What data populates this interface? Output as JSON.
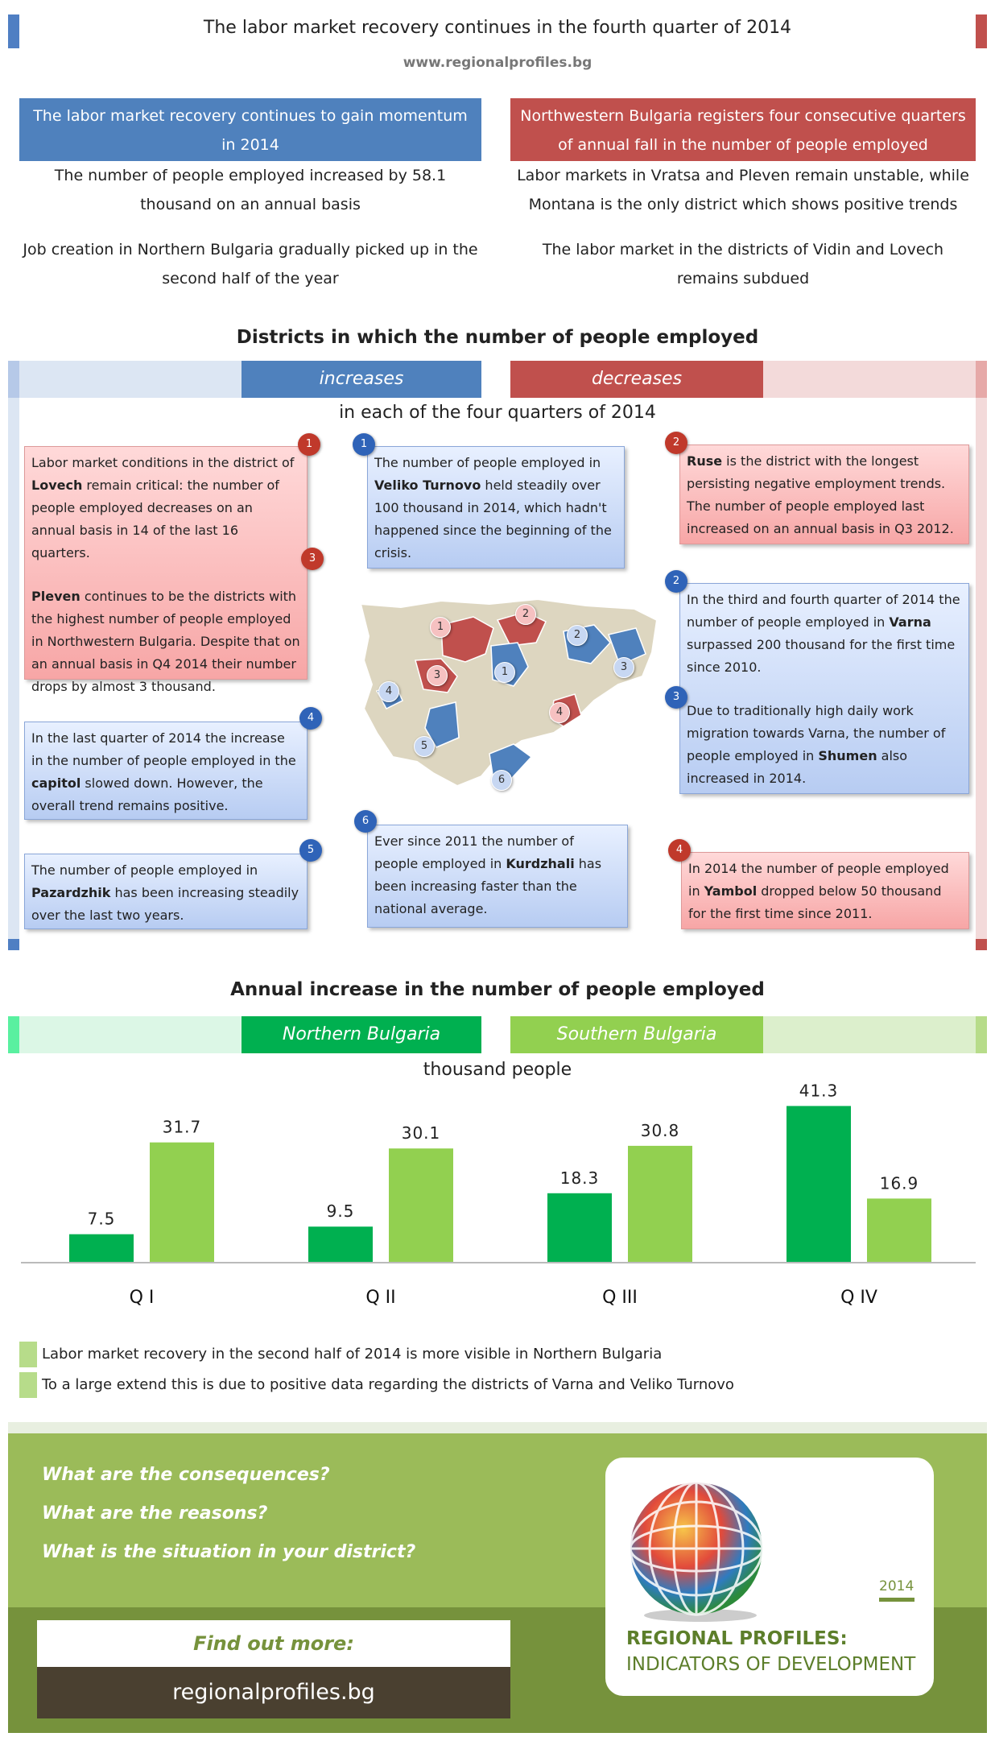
{
  "header": {
    "title": "The labor market recovery continues in the fourth quarter of 2014",
    "url": "www.regionalprofiles.bg"
  },
  "summary": {
    "left_banner": "The labor market recovery continues to gain momentum in 2014",
    "left_points": [
      "The number of people employed increased by 58.1 thousand on an annual basis",
      "Job creation in Northern Bulgaria gradually picked up in the second half of the year"
    ],
    "right_banner": "Northwestern Bulgaria registers four consecutive quarters of annual fall in the number of people employed",
    "right_points": [
      "Labor markets in Vratsa and Pleven remain unstable, while Montana is the only district which shows positive trends",
      "The labor market in the districts of Vidin and Lovech remains subdued"
    ]
  },
  "districts": {
    "title": "Districts in which the number of people employed",
    "increases_label": "increases",
    "decreases_label": "decreases",
    "subtitle": "in each of the four quarters of 2014",
    "cards": [
      {
        "num": "1",
        "color": "red",
        "pre": "Labor market conditions in the district of ",
        "bold": "Lovech",
        "post": " remain critical: the number of people employed decreases on an annual basis in 14 of the last 16 quarters."
      },
      {
        "num": "3",
        "color": "red",
        "pre": "",
        "bold": "Pleven",
        "post": " continues to be the districts with the highest number of people employed in Northwestern Bulgaria. Despite that on an annual basis in Q4 2014 their number drops by almost 3 thousand."
      },
      {
        "num": "1",
        "color": "blue",
        "pre": "The number of people employed in ",
        "bold": "Veliko Turnovo",
        "post": " held steadily over 100 thousand in 2014, which hadn't happened since the beginning of the crisis."
      },
      {
        "num": "2",
        "color": "red",
        "pre": "",
        "bold": "Ruse",
        "post": " is the district with the longest persisting negative employment trends. The number of people employed last increased on an annual basis in Q3 2012."
      },
      {
        "num": "2",
        "color": "blue",
        "pre": "In the third and fourth quarter of 2014 the number of people employed in ",
        "bold": "Varna",
        "post": " surpassed 200 thousand for the first time since 2010."
      },
      {
        "num": "3",
        "color": "blue",
        "pre": "Due to traditionally high daily work migration towards Varna, the number of people employed in ",
        "bold": "Shumen",
        "post": " also increased in 2014."
      },
      {
        "num": "4",
        "color": "blue",
        "pre": "In the last quarter of 2014 the increase in the number of people employed in the ",
        "bold": "capitol",
        "post": " slowed down. However, the overall trend remains positive."
      },
      {
        "num": "5",
        "color": "blue",
        "pre": "The number of people employed in ",
        "bold": "Pazardzhik",
        "post": " has been increasing steadily over the last two years."
      },
      {
        "num": "6",
        "color": "blue",
        "pre": "Ever since 2011 the number of people employed in ",
        "bold": "Kurdzhali",
        "post": " has been increasing faster than the national average."
      },
      {
        "num": "4",
        "color": "red",
        "pre": "In 2014 the number of people employed in ",
        "bold": "Yambol",
        "post": " dropped below 50 thousand for the first time since 2011."
      }
    ],
    "map_badges": [
      "1",
      "2",
      "3",
      "4",
      "1",
      "2",
      "3",
      "4",
      "5",
      "6"
    ]
  },
  "chart_data": {
    "type": "bar",
    "title": "Annual increase in the number of people employed",
    "ylabel": "thousand people",
    "categories": [
      "Q I",
      "Q II",
      "Q III",
      "Q IV"
    ],
    "series": [
      {
        "name": "Northern Bulgaria",
        "values": [
          7.5,
          9.5,
          18.3,
          41.3
        ],
        "color": "#00b050"
      },
      {
        "name": "Southern Bulgaria",
        "values": [
          31.7,
          30.1,
          30.8,
          16.9
        ],
        "color": "#92d050"
      }
    ],
    "ylim": [
      0,
      45
    ],
    "grid": false
  },
  "notes": [
    "Labor market recovery in the second half of 2014 is more visible in Northern Bulgaria",
    "To a large extend this is due to positive data regarding the districts of Varna and Veliko Turnovo"
  ],
  "footer": {
    "questions": [
      "What are the consequences?",
      "What are the reasons?",
      "What is the situation in your district?"
    ],
    "find_out": "Find out more:",
    "link": "regionalprofiles.bg",
    "logo_year": "2014",
    "logo_title": "REGIONAL PROFILES:",
    "logo_subtitle": "INDICATORS OF DEVELOPMENT"
  },
  "colors": {
    "blue": "#4f81bd",
    "red": "#c0504d",
    "north": "#00b050",
    "south": "#92d050",
    "footer": "#9bbb59"
  }
}
